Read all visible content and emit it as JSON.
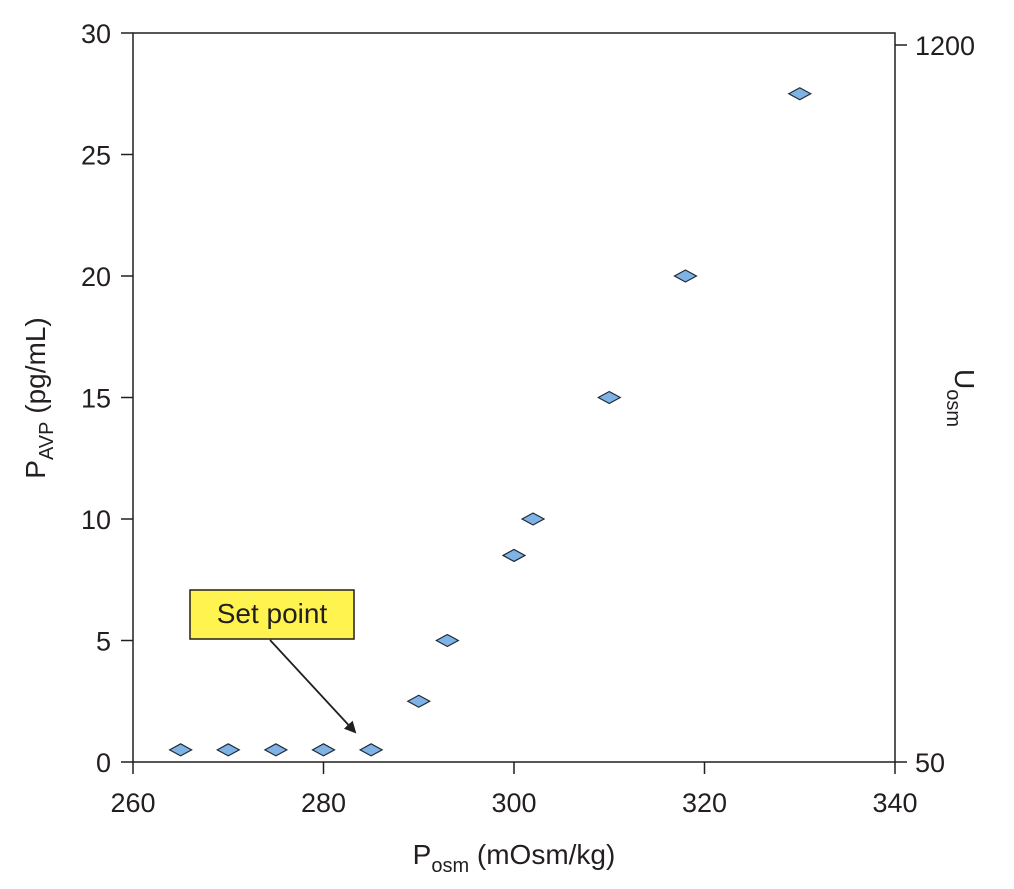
{
  "chart_data": {
    "type": "scatter",
    "xlabel": {
      "main": "P",
      "sub": "osm",
      "unit": " (mOsm/kg)"
    },
    "ylabel": {
      "main": "P",
      "sub": "AVP",
      "unit": " (pg/mL)"
    },
    "y2label": {
      "main": "U",
      "sub": "osm"
    },
    "xlim": [
      260,
      340
    ],
    "ylim": [
      0,
      30
    ],
    "x_ticks": [
      260,
      280,
      300,
      320,
      340
    ],
    "y_ticks": [
      0,
      5,
      10,
      15,
      20,
      25,
      30
    ],
    "y2_ticks": [
      "1200",
      "50"
    ],
    "grid": false,
    "series": [
      {
        "points": [
          {
            "x": 265,
            "y": 0.5
          },
          {
            "x": 270,
            "y": 0.5
          },
          {
            "x": 275,
            "y": 0.5
          },
          {
            "x": 280,
            "y": 0.5
          },
          {
            "x": 285,
            "y": 0.5
          },
          {
            "x": 290,
            "y": 2.5
          },
          {
            "x": 293,
            "y": 5
          },
          {
            "x": 300,
            "y": 8.5
          },
          {
            "x": 302,
            "y": 10
          },
          {
            "x": 310,
            "y": 15
          },
          {
            "x": 318,
            "y": 20
          },
          {
            "x": 330,
            "y": 27.5
          }
        ]
      }
    ],
    "annotation": {
      "text": "Set point",
      "target": {
        "x": 285,
        "y": 0.5
      }
    },
    "colors": {
      "marker_fill": "#7fb2e5",
      "marker_stroke": "#1f2a36",
      "callout_fill": "#fff44f",
      "axis": "#231f20"
    }
  }
}
